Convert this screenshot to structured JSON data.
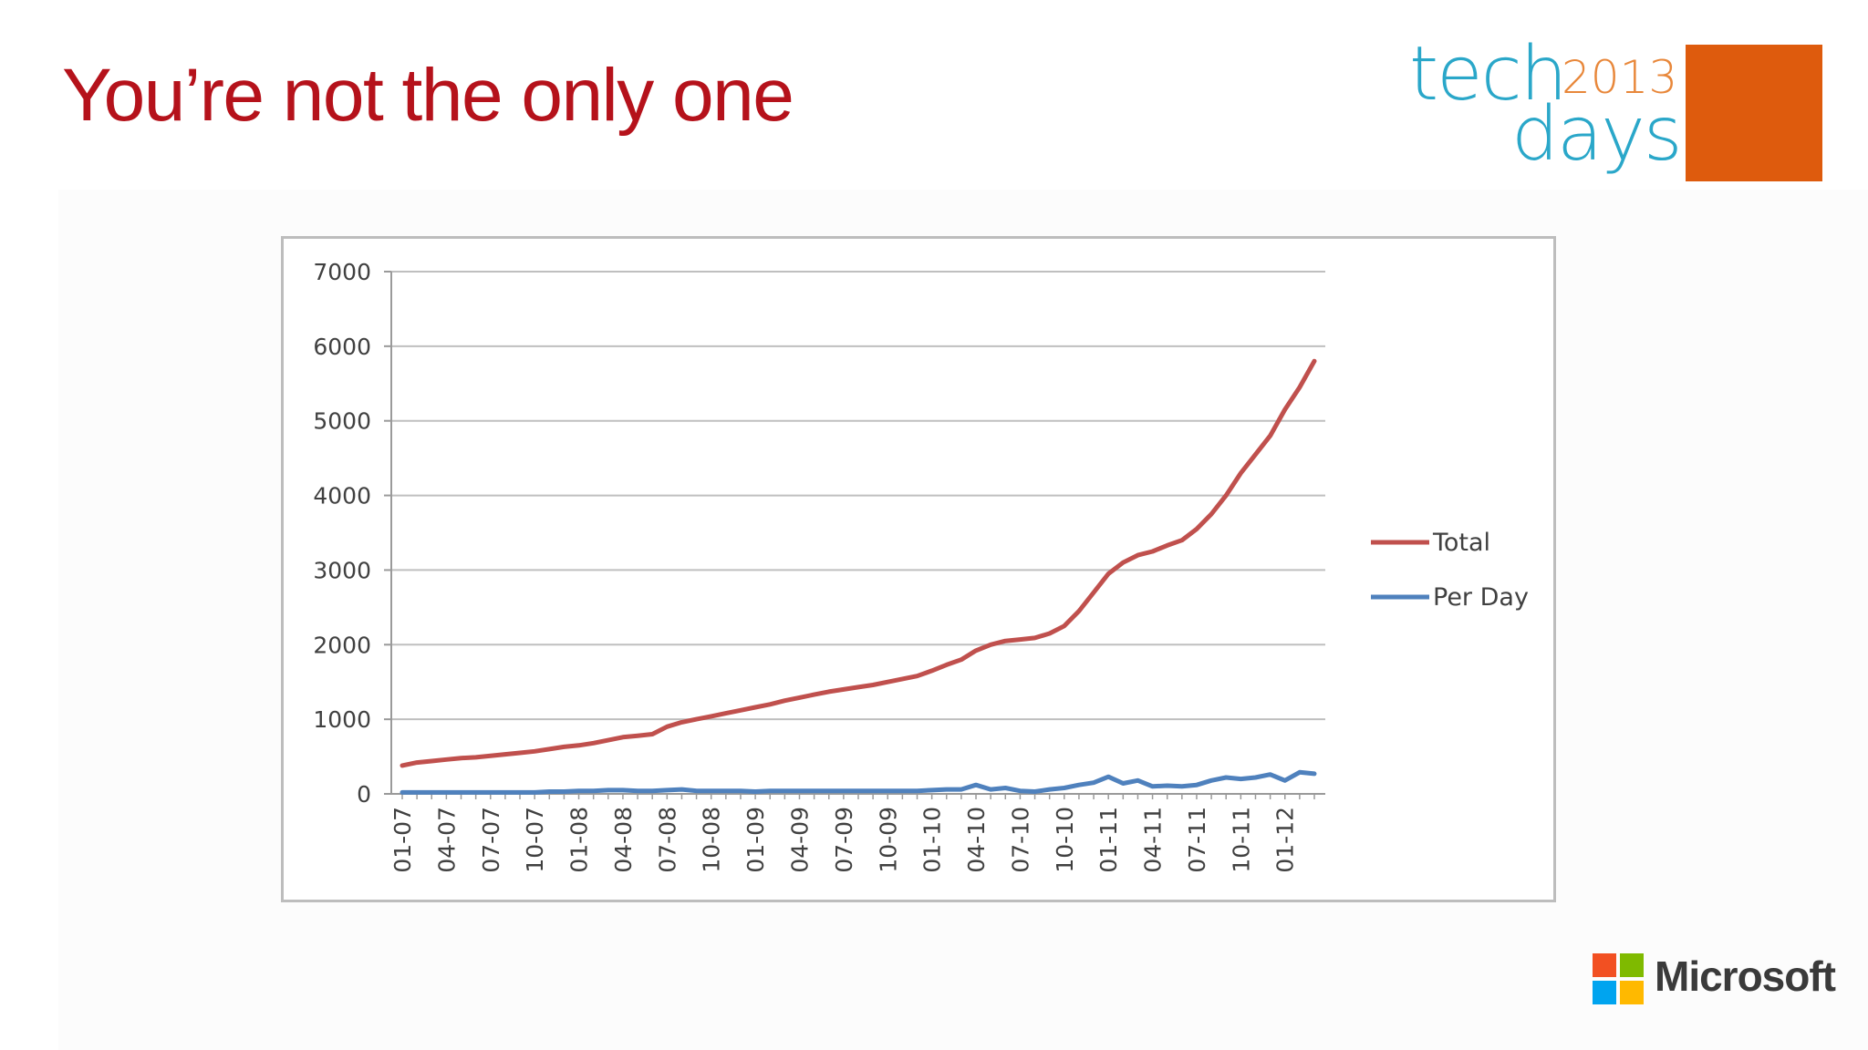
{
  "slide": {
    "title": "You’re not the only one"
  },
  "branding": {
    "logo_tech": "tech",
    "logo_days": "days",
    "logo_year": "2013",
    "logo_square_color": "#de5b0d",
    "microsoft_label": "Microsoft",
    "microsoft_colors": [
      "#f25022",
      "#7fba00",
      "#00a4ef",
      "#ffb900"
    ]
  },
  "chart_data": {
    "type": "line",
    "title": "",
    "xlabel": "",
    "ylabel": "",
    "ylim": [
      0,
      7000
    ],
    "yticks": [
      0,
      1000,
      2000,
      3000,
      4000,
      5000,
      6000,
      7000
    ],
    "grid": true,
    "legend_position": "right",
    "x_tick_labels": [
      "01-07",
      "04-07",
      "07-07",
      "10-07",
      "01-08",
      "04-08",
      "07-08",
      "10-08",
      "01-09",
      "04-09",
      "07-09",
      "10-09",
      "01-10",
      "04-10",
      "07-10",
      "10-10",
      "01-11",
      "04-11",
      "07-11",
      "10-11",
      "01-12"
    ],
    "x": [
      "01-07",
      "02-07",
      "03-07",
      "04-07",
      "05-07",
      "06-07",
      "07-07",
      "08-07",
      "09-07",
      "10-07",
      "11-07",
      "12-07",
      "01-08",
      "02-08",
      "03-08",
      "04-08",
      "05-08",
      "06-08",
      "07-08",
      "08-08",
      "09-08",
      "10-08",
      "11-08",
      "12-08",
      "01-09",
      "02-09",
      "03-09",
      "04-09",
      "05-09",
      "06-09",
      "07-09",
      "08-09",
      "09-09",
      "10-09",
      "11-09",
      "12-09",
      "01-10",
      "02-10",
      "03-10",
      "04-10",
      "05-10",
      "06-10",
      "07-10",
      "08-10",
      "09-10",
      "10-10",
      "11-10",
      "12-10",
      "01-11",
      "02-11",
      "03-11",
      "04-11",
      "05-11",
      "06-11",
      "07-11",
      "08-11",
      "09-11",
      "10-11",
      "11-11",
      "12-11",
      "01-12",
      "02-12",
      "03-12"
    ],
    "series": [
      {
        "name": "Total",
        "color": "#c0504d",
        "values": [
          380,
          420,
          440,
          460,
          480,
          490,
          510,
          530,
          550,
          570,
          600,
          630,
          650,
          680,
          720,
          760,
          780,
          800,
          900,
          960,
          1000,
          1040,
          1080,
          1120,
          1160,
          1200,
          1250,
          1290,
          1330,
          1370,
          1400,
          1430,
          1460,
          1500,
          1540,
          1580,
          1650,
          1730,
          1800,
          1920,
          2000,
          2050,
          2070,
          2090,
          2150,
          2250,
          2450,
          2700,
          2950,
          3100,
          3200,
          3250,
          3330,
          3400,
          3550,
          3750,
          4000,
          4300,
          4550,
          4800,
          5150,
          5450,
          5800
        ]
      },
      {
        "name": "Per Day",
        "color": "#4f81bd",
        "values": [
          20,
          20,
          20,
          20,
          20,
          20,
          20,
          20,
          20,
          20,
          30,
          30,
          40,
          40,
          50,
          50,
          40,
          40,
          50,
          60,
          40,
          40,
          40,
          40,
          30,
          40,
          40,
          40,
          40,
          40,
          40,
          40,
          40,
          40,
          40,
          40,
          50,
          60,
          60,
          120,
          60,
          80,
          40,
          30,
          60,
          80,
          120,
          150,
          230,
          140,
          180,
          100,
          110,
          100,
          120,
          180,
          220,
          200,
          220,
          260,
          180,
          290,
          270
        ]
      }
    ]
  }
}
